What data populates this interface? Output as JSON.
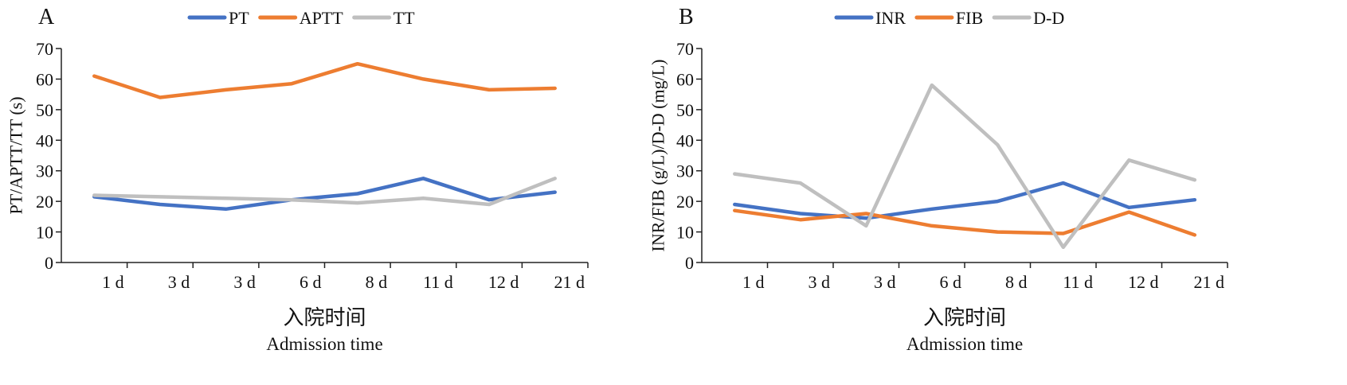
{
  "chart_data": [
    {
      "panel": "A",
      "type": "line",
      "xlabel_cn": "入院时间",
      "xlabel_en": "Admission time",
      "ylabel": "PT/APTT/TT (s)",
      "ylim": [
        0,
        70
      ],
      "yticks": [
        0,
        10,
        20,
        30,
        40,
        50,
        60,
        70
      ],
      "categories": [
        "1 d",
        "3 d",
        "3 d",
        "6 d",
        "8 d",
        "11 d",
        "12 d",
        "21 d"
      ],
      "legend_position": "top",
      "grid": false,
      "series": [
        {
          "name": "PT",
          "color": "#4472C4",
          "values": [
            21.5,
            19,
            17.5,
            20.5,
            22.5,
            27.5,
            20.5,
            23
          ]
        },
        {
          "name": "APTT",
          "color": "#ED7D31",
          "values": [
            61,
            54,
            56.5,
            58.5,
            65,
            60,
            56.5,
            57
          ]
        },
        {
          "name": "TT",
          "color": "#BFBFBF",
          "values": [
            22,
            21.5,
            21,
            20.5,
            19.5,
            21,
            19,
            27.5
          ]
        }
      ]
    },
    {
      "panel": "B",
      "type": "line",
      "xlabel_cn": "入院时间",
      "xlabel_en": "Admission time",
      "ylabel": "INR/FIB (g/L)/D-D (mg/L)",
      "ylim": [
        0,
        70
      ],
      "yticks": [
        0,
        10,
        20,
        30,
        40,
        50,
        60,
        70
      ],
      "categories": [
        "1 d",
        "3 d",
        "3 d",
        "6 d",
        "8 d",
        "11 d",
        "12 d",
        "21 d"
      ],
      "legend_position": "top",
      "grid": false,
      "series": [
        {
          "name": "INR",
          "color": "#4472C4",
          "values": [
            19,
            16,
            14.5,
            17.5,
            20,
            26,
            18,
            20.5
          ]
        },
        {
          "name": "FIB",
          "color": "#ED7D31",
          "values": [
            17,
            14,
            16,
            12,
            10,
            9.5,
            16.5,
            9
          ]
        },
        {
          "name": "D-D",
          "color": "#BFBFBF",
          "values": [
            29,
            26,
            12,
            58,
            38.5,
            5,
            33.5,
            27
          ]
        }
      ]
    }
  ]
}
